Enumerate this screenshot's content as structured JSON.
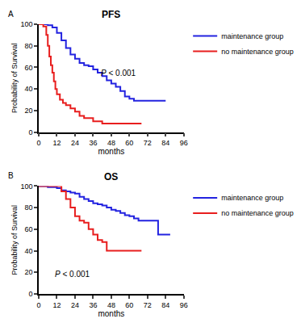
{
  "chart_data": [
    {
      "type": "line",
      "label": "A",
      "title": "PFS",
      "annotation": "P < 0.001",
      "x_label": "months",
      "y_label": "Probability of Survival",
      "xlim": [
        0,
        96
      ],
      "xticks": [
        0,
        12,
        24,
        36,
        48,
        60,
        72,
        84,
        96
      ],
      "ylim": [
        0,
        100
      ],
      "yticks": [
        0,
        20,
        40,
        60,
        80,
        100
      ],
      "grid": false,
      "legend": "right",
      "line_style": "step",
      "series": [
        {
          "name": "maintenance group",
          "color": "#2323e0",
          "x": [
            0,
            6,
            9,
            12,
            15,
            18,
            21,
            24,
            27,
            30,
            33,
            36,
            39,
            42,
            45,
            48,
            51,
            54,
            57,
            60,
            63,
            66,
            84
          ],
          "values": [
            100,
            99,
            97,
            92,
            85,
            78,
            72,
            68,
            64,
            62,
            61,
            58,
            55,
            52,
            48,
            45,
            42,
            38,
            33,
            31,
            29,
            29,
            29
          ]
        },
        {
          "name": "no maintenance group",
          "color": "#e81e1e",
          "x": [
            0,
            3,
            5,
            6,
            7,
            8,
            9,
            10,
            11,
            12,
            14,
            16,
            18,
            21,
            24,
            27,
            30,
            33,
            36,
            42,
            48,
            68
          ],
          "values": [
            100,
            98,
            90,
            80,
            70,
            62,
            55,
            47,
            40,
            35,
            30,
            27,
            25,
            22,
            19,
            15,
            13,
            13,
            10,
            8,
            8,
            8
          ]
        }
      ]
    },
    {
      "type": "line",
      "label": "B",
      "title": "OS",
      "annotation": "P < 0.001",
      "x_label": "months",
      "y_label": "Probability of Survival",
      "xlim": [
        0,
        96
      ],
      "xticks": [
        0,
        12,
        24,
        36,
        48,
        60,
        72,
        84,
        96
      ],
      "ylim": [
        0,
        100
      ],
      "yticks": [
        0,
        20,
        40,
        60,
        80,
        100
      ],
      "grid": false,
      "legend": "right",
      "line_style": "step",
      "series": [
        {
          "name": "maintenance group",
          "color": "#2323e0",
          "x": [
            0,
            6,
            12,
            15,
            18,
            21,
            24,
            27,
            30,
            33,
            36,
            39,
            42,
            45,
            48,
            51,
            54,
            57,
            60,
            63,
            66,
            78,
            79,
            87
          ],
          "values": [
            100,
            99,
            98,
            96,
            95,
            94,
            93,
            90,
            88,
            86,
            84,
            83,
            82,
            80,
            78,
            77,
            75,
            73,
            72,
            70,
            68,
            68,
            55,
            55
          ]
        },
        {
          "name": "no maintenance group",
          "color": "#e81e1e",
          "x": [
            0,
            12,
            15,
            18,
            21,
            24,
            27,
            30,
            33,
            36,
            39,
            42,
            45,
            48,
            68
          ],
          "values": [
            100,
            100,
            95,
            88,
            80,
            72,
            68,
            66,
            60,
            55,
            50,
            48,
            40,
            40,
            40
          ]
        }
      ]
    }
  ]
}
